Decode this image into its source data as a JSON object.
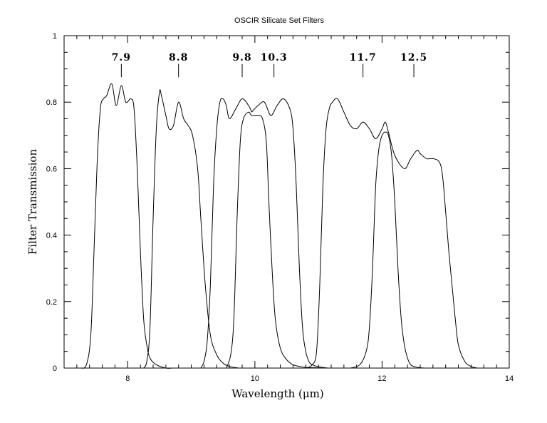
{
  "chart_data": {
    "type": "line",
    "title": "OSCIR Silicate Set Filters",
    "xlabel": "Wavelength (μm)",
    "ylabel": "Filter Transmission",
    "xlim": [
      7,
      14
    ],
    "ylim": [
      0,
      1
    ],
    "x_ticks": [
      "8",
      "10",
      "12",
      "14"
    ],
    "y_ticks": [
      "0",
      "0.2",
      "0.4",
      "0.6",
      "0.8",
      "1"
    ],
    "x_minor_step": 0.2,
    "y_minor_step": 0.05,
    "grid": false,
    "markers": [
      {
        "label": "7.9",
        "x": 7.9
      },
      {
        "label": "8.8",
        "x": 8.8
      },
      {
        "label": "9.8",
        "x": 9.8
      },
      {
        "label": "10.3",
        "x": 10.3
      },
      {
        "label": "11.7",
        "x": 11.7
      },
      {
        "label": "12.5",
        "x": 12.5
      }
    ],
    "series": [
      {
        "x": [
          7.25,
          7.35,
          7.42,
          7.47,
          7.52,
          7.57,
          7.62,
          7.67,
          7.75,
          7.82,
          7.9,
          7.97,
          8.05,
          8.1,
          8.15,
          8.2,
          8.25,
          8.3,
          8.35,
          8.45,
          8.6,
          8.7
        ],
        "y": [
          0,
          0.01,
          0.1,
          0.35,
          0.62,
          0.78,
          0.81,
          0.82,
          0.855,
          0.79,
          0.85,
          0.8,
          0.81,
          0.78,
          0.6,
          0.35,
          0.15,
          0.07,
          0.03,
          0.01,
          0,
          0
        ]
      },
      {
        "x": [
          8.25,
          8.3,
          8.35,
          8.4,
          8.45,
          8.5,
          8.53,
          8.6,
          8.65,
          8.72,
          8.8,
          8.88,
          8.95,
          9.02,
          9.1,
          9.15,
          9.22,
          9.3,
          9.4,
          9.5,
          9.6,
          9.75
        ],
        "y": [
          0,
          0.02,
          0.12,
          0.45,
          0.72,
          0.83,
          0.82,
          0.76,
          0.72,
          0.73,
          0.8,
          0.75,
          0.73,
          0.7,
          0.6,
          0.45,
          0.25,
          0.1,
          0.04,
          0.015,
          0.005,
          0
        ]
      },
      {
        "x": [
          9.15,
          9.2,
          9.25,
          9.3,
          9.35,
          9.4,
          9.45,
          9.5,
          9.55,
          9.6,
          9.7,
          9.8,
          9.9,
          9.95
        ],
        "y": [
          0,
          0.02,
          0.08,
          0.25,
          0.55,
          0.72,
          0.8,
          0.81,
          0.79,
          0.75,
          0.78,
          0.81,
          0.79,
          0.77
        ]
      },
      {
        "x": [
          9.95,
          10.05,
          10.15,
          10.25,
          10.35,
          10.45,
          10.55,
          10.6,
          10.65,
          10.7,
          10.75,
          10.8,
          10.85,
          10.9,
          11.0,
          11.15
        ],
        "y": [
          0.77,
          0.79,
          0.8,
          0.76,
          0.79,
          0.81,
          0.78,
          0.72,
          0.55,
          0.3,
          0.12,
          0.05,
          0.02,
          0.01,
          0.004,
          0
        ]
      },
      {
        "x": [
          9.55,
          9.62,
          9.67,
          9.72,
          9.77,
          9.82,
          9.9,
          9.95,
          10.05,
          10.12,
          10.18,
          10.22,
          10.27,
          10.32,
          10.4,
          10.5,
          10.6,
          10.7,
          10.8,
          10.95,
          11.1
        ],
        "y": [
          0,
          0.04,
          0.15,
          0.45,
          0.68,
          0.75,
          0.77,
          0.76,
          0.76,
          0.75,
          0.68,
          0.5,
          0.3,
          0.15,
          0.06,
          0.025,
          0.01,
          0.005,
          0.002,
          0.001,
          0
        ]
      },
      {
        "x": [
          10.8,
          10.9,
          10.97,
          11.02,
          11.07,
          11.12,
          11.17,
          11.22,
          11.3,
          11.4,
          11.5,
          11.6,
          11.7,
          11.8,
          11.9,
          12.0,
          12.05,
          12.1,
          12.2,
          12.35,
          12.45,
          12.55,
          12.6,
          12.7,
          12.8,
          12.9,
          12.95,
          13.0,
          13.05,
          13.1,
          13.15,
          13.2,
          13.3,
          13.4,
          13.5
        ],
        "y": [
          0,
          0.01,
          0.05,
          0.25,
          0.55,
          0.72,
          0.78,
          0.8,
          0.81,
          0.77,
          0.73,
          0.72,
          0.74,
          0.72,
          0.69,
          0.72,
          0.74,
          0.71,
          0.64,
          0.6,
          0.63,
          0.655,
          0.645,
          0.63,
          0.63,
          0.62,
          0.58,
          0.47,
          0.35,
          0.25,
          0.15,
          0.07,
          0.02,
          0.005,
          0
        ]
      },
      {
        "x": [
          11.5,
          11.65,
          11.75,
          11.8,
          11.85,
          11.9,
          11.95,
          12.0,
          12.05,
          12.1,
          12.15,
          12.2,
          12.25,
          12.3,
          12.35,
          12.4,
          12.45,
          12.5,
          12.6,
          12.7
        ],
        "y": [
          0,
          0.01,
          0.05,
          0.12,
          0.3,
          0.55,
          0.66,
          0.7,
          0.71,
          0.7,
          0.64,
          0.5,
          0.3,
          0.15,
          0.07,
          0.03,
          0.01,
          0.005,
          0.001,
          0
        ]
      }
    ]
  }
}
